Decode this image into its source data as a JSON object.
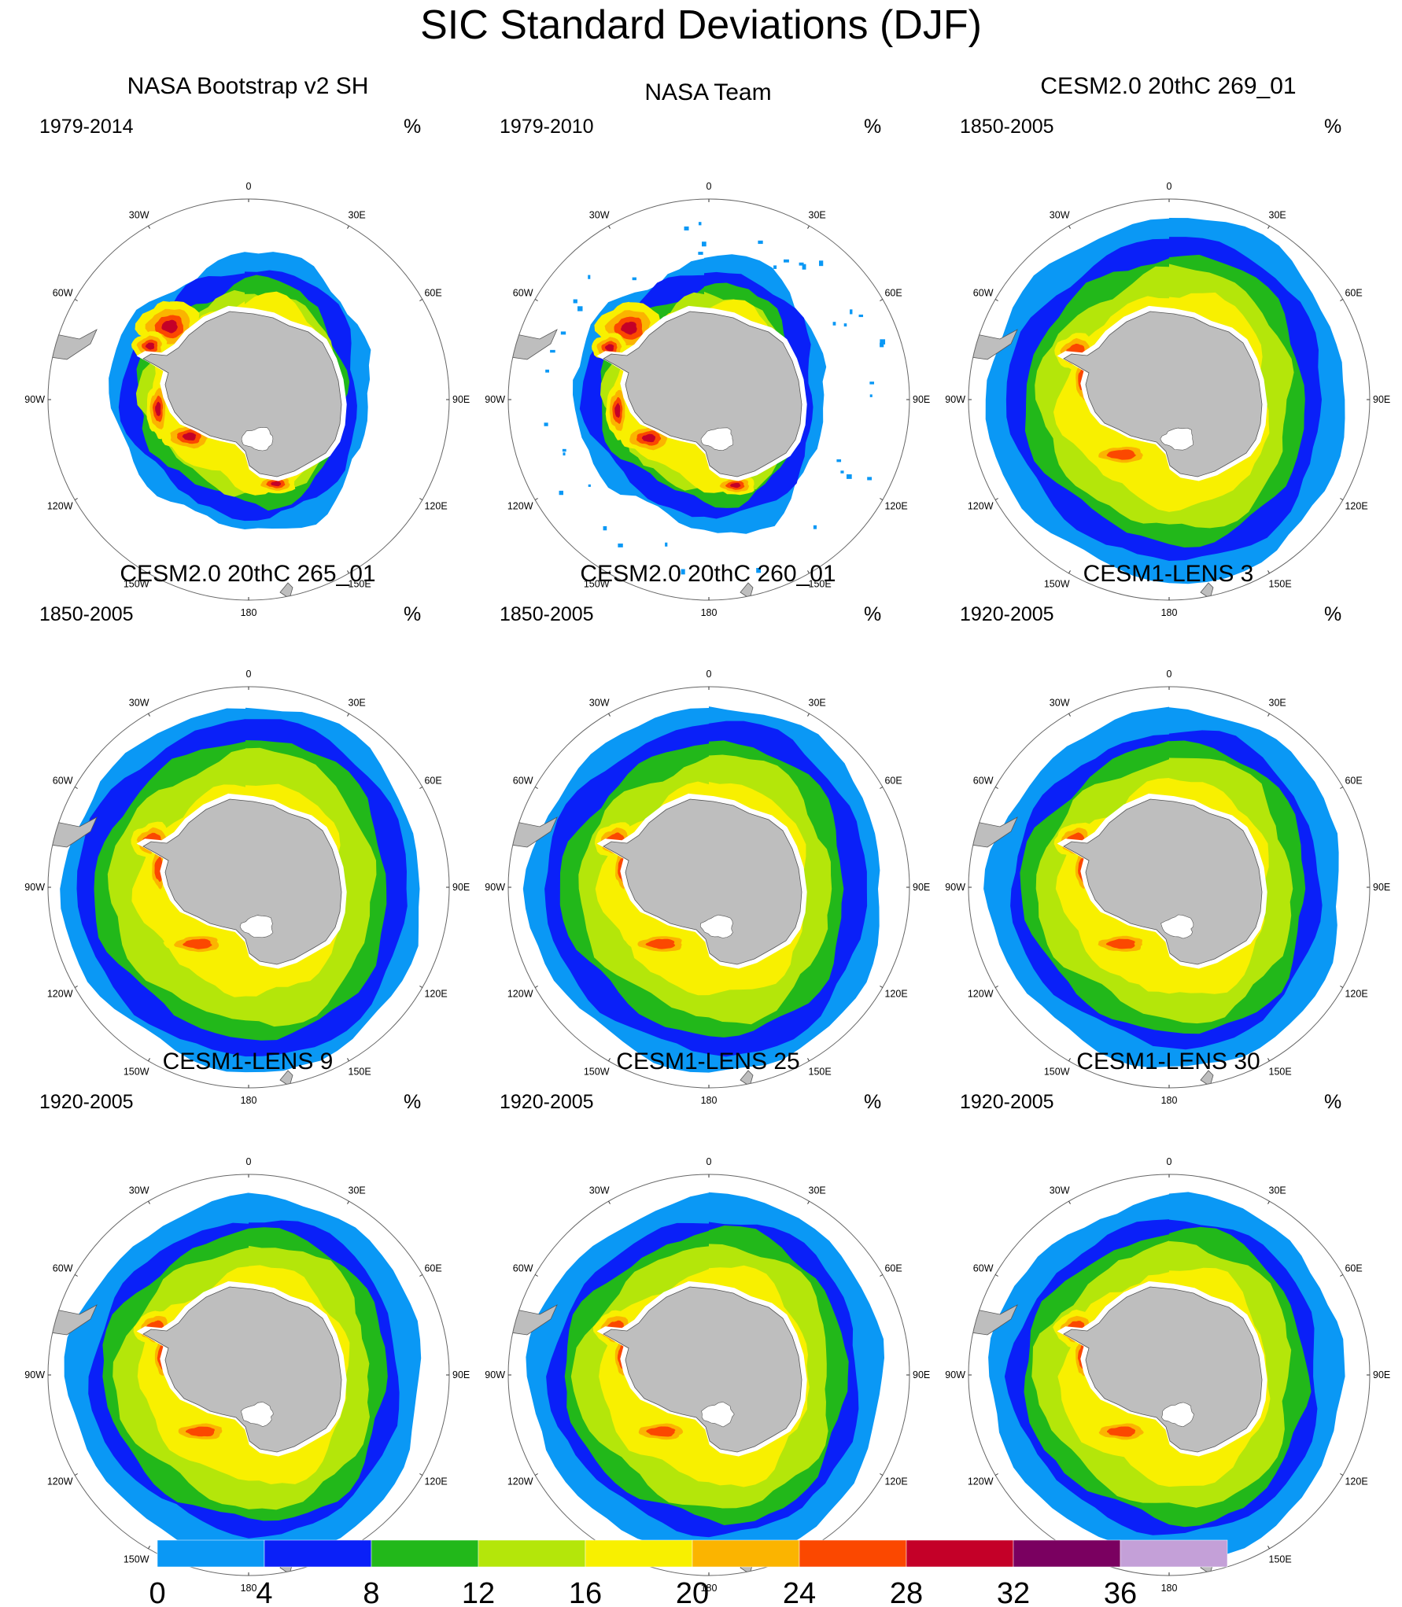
{
  "figure": {
    "title": "SIC Standard Deviations (DJF)",
    "land_color": "#bebebe",
    "ring_color": "#666666",
    "background": "#ffffff"
  },
  "colorbar": {
    "bounds": [
      0,
      4,
      8,
      12,
      16,
      20,
      24,
      28,
      32,
      36
    ],
    "labels": [
      "0",
      "4",
      "8",
      "12",
      "16",
      "20",
      "24",
      "28",
      "32",
      "36"
    ],
    "colors": [
      "#0a98f5",
      "#0a20f8",
      "#22b81a",
      "#b4e60a",
      "#f8f000",
      "#fbb400",
      "#fb4800",
      "#c40028",
      "#7a0060",
      "#c4a0d8"
    ]
  },
  "map_labels": {
    "lon_labels": [
      "0",
      "30E",
      "60E",
      "90E",
      "120E",
      "150E",
      "180",
      "150W",
      "120W",
      "90W",
      "60W",
      "30W"
    ]
  },
  "panels": [
    {
      "title": "NASA Bootstrap v2 SH",
      "period": "1979-2014",
      "unit": "%",
      "kind": "obs1"
    },
    {
      "title": "NASA Team",
      "period": "1979-2010",
      "unit": "%",
      "kind": "obs2"
    },
    {
      "title": "CESM2.0 20thC 269_01",
      "period": "1850-2005",
      "unit": "%",
      "kind": "cesm2a"
    },
    {
      "title": "CESM2.0 20thC 265_01",
      "period": "1850-2005",
      "unit": "%",
      "kind": "cesm2b"
    },
    {
      "title": "CESM2.0 20thC 260_01",
      "period": "1850-2005",
      "unit": "%",
      "kind": "cesm2c"
    },
    {
      "title": "CESM1-LENS 3",
      "period": "1920-2005",
      "unit": "%",
      "kind": "lens"
    },
    {
      "title": "CESM1-LENS 9",
      "period": "1920-2005",
      "unit": "%",
      "kind": "lens"
    },
    {
      "title": "CESM1-LENS 25",
      "period": "1920-2005",
      "unit": "%",
      "kind": "lens"
    },
    {
      "title": "CESM1-LENS 30",
      "period": "1920-2005",
      "unit": "%",
      "kind": "lens"
    }
  ]
}
